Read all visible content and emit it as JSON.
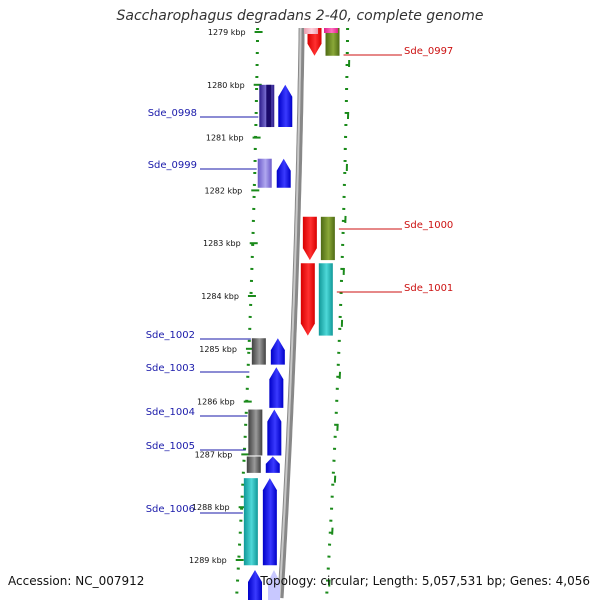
{
  "title": "Saccharophagus degradans 2-40, complete genome",
  "accession": "Accession: NC_007912",
  "summary": "Topology: circular; Length: 5,057,531 bp; Genes: 4,056",
  "ruler": [
    "1279 kbp",
    "1280 kbp",
    "1281 kbp",
    "1282 kbp",
    "1283 kbp",
    "1284 kbp",
    "1285 kbp",
    "1286 kbp",
    "1287 kbp",
    "1288 kbp",
    "1289 kbp"
  ],
  "genes_forward": [
    {
      "name": "Sde_0998",
      "start": 1280.0,
      "end": 1280.8
    },
    {
      "name": "Sde_0999",
      "start": 1281.4,
      "end": 1281.95
    },
    {
      "name": "Sde_1002",
      "start": 1284.8,
      "end": 1285.3
    },
    {
      "name": "Sde_1003",
      "start": 1285.35,
      "end": 1286.12
    },
    {
      "name": "Sde_1004",
      "start": 1286.15,
      "end": 1287.02
    },
    {
      "name": "Sde_1005",
      "start": 1287.04,
      "end": 1287.35
    },
    {
      "name": "Sde_1006",
      "start": 1287.45,
      "end": 1289.1
    }
  ],
  "genes_reverse": [
    {
      "name": "Sde_0997",
      "start": 1278.7,
      "end": 1279.45
    },
    {
      "name": "Sde_1000",
      "start": 1282.5,
      "end": 1283.32
    },
    {
      "name": "Sde_1001",
      "start": 1283.38,
      "end": 1284.75
    }
  ],
  "colors": {
    "forward_label": "#1a1aaa",
    "reverse_label": "#cc1111",
    "gene_forward": "#0000ee",
    "gene_reverse": "#ee0000",
    "backbone": "#888888",
    "ticks": "#1a8a1a"
  }
}
